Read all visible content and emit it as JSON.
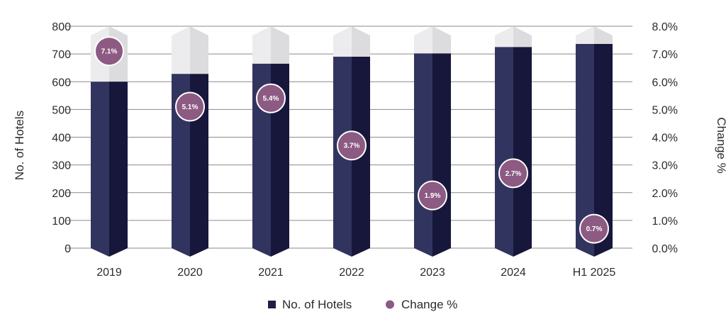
{
  "chart_data": {
    "type": "bar",
    "categories": [
      "2019",
      "2020",
      "2021",
      "2022",
      "2023",
      "2024",
      "H1 2025"
    ],
    "series": [
      {
        "name": "No. of Hotels",
        "type": "bar",
        "axis": "left",
        "color": "#1e1f45",
        "values": [
          600,
          628,
          665,
          690,
          702,
          725,
          736
        ]
      },
      {
        "name": "Change %",
        "type": "scatter",
        "axis": "right",
        "color": "#8c5a82",
        "values": [
          7.1,
          5.1,
          5.4,
          3.7,
          1.9,
          2.7,
          0.7
        ],
        "labels": [
          "7.1%",
          "5.1%",
          "5.4%",
          "3.7%",
          "1.9%",
          "2.7%",
          "0.7%"
        ]
      }
    ],
    "ylabel": "No. of Hotels",
    "ylabel_right": "Change %",
    "ylim": [
      0,
      800
    ],
    "ylim_right": [
      0,
      8
    ],
    "yticks": [
      "0",
      "100",
      "200",
      "300",
      "400",
      "500",
      "600",
      "700",
      "800"
    ],
    "yticks_right": [
      "0.0%",
      "1.0%",
      "2.0%",
      "3.0%",
      "4.0%",
      "5.0%",
      "6.0%",
      "7.0%",
      "8.0%"
    ],
    "grid": true,
    "legend_position": "bottom",
    "colors": {
      "bar_dark": "#1e1f45",
      "bar_light": "#31345e",
      "cap_light": "#e4e4e6",
      "cap_mid": "#ececee",
      "marker": "#8c5a82"
    }
  },
  "legend": [
    {
      "label": "No. of Hotels",
      "marker": "square",
      "color": "#1e1f45"
    },
    {
      "label": "Change %",
      "marker": "circle",
      "color": "#8c5a82"
    }
  ]
}
